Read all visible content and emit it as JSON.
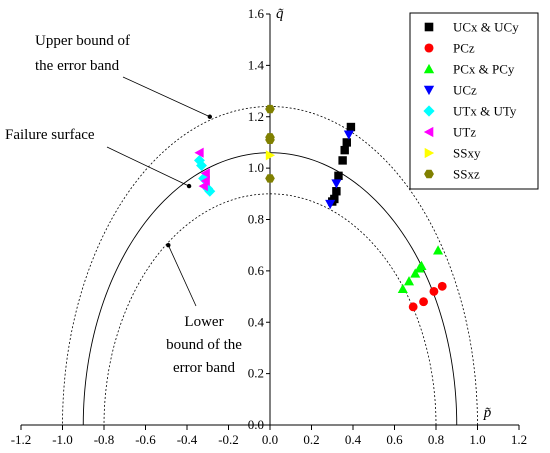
{
  "chart_data": {
    "type": "scatter",
    "xlabel": "p̃",
    "ylabel": "q̃",
    "xlim": [
      -1.2,
      1.2
    ],
    "ylim": [
      0.0,
      1.6
    ],
    "x_ticks": [
      "-1.2",
      "-1.0",
      "-0.8",
      "-0.6",
      "-0.4",
      "-0.2",
      "0.0",
      "0.2",
      "0.4",
      "0.6",
      "0.8",
      "1.0",
      "1.2"
    ],
    "y_ticks": [
      "0.0",
      "0.2",
      "0.4",
      "0.6",
      "0.8",
      "1.0",
      "1.2",
      "1.4",
      "1.6"
    ],
    "legend_position": "top-right",
    "curves": [
      {
        "label": "Failure surface",
        "style": "solid",
        "x_radius": 0.9,
        "y_radius": 1.06
      },
      {
        "label": "Upper bound of the error band",
        "style": "dotted",
        "x_radius": 1.0,
        "y_radius": 1.24
      },
      {
        "label": "Lower bound of the error band",
        "style": "dotted",
        "x_radius": 0.8,
        "y_radius": 0.9
      }
    ],
    "annotations": [
      {
        "lines": [
          "Upper bound of",
          "the error band"
        ],
        "target": [
          -0.29,
          1.2
        ]
      },
      {
        "lines": [
          "Failure surface"
        ],
        "target": [
          -0.39,
          0.93
        ]
      },
      {
        "lines": [
          "Lower",
          "bound of the",
          "error band"
        ],
        "target": [
          -0.49,
          0.7
        ]
      }
    ],
    "series": [
      {
        "name": "UCx & UCy",
        "marker": "square",
        "color": "#000000",
        "points": [
          [
            0.39,
            1.16
          ],
          [
            0.37,
            1.1
          ],
          [
            0.36,
            1.07
          ],
          [
            0.35,
            1.03
          ],
          [
            0.33,
            0.97
          ],
          [
            0.32,
            0.91
          ],
          [
            0.31,
            0.88
          ],
          [
            0.3,
            0.87
          ]
        ]
      },
      {
        "name": "PCz",
        "marker": "circle",
        "color": "#ff0000",
        "points": [
          [
            0.69,
            0.46
          ],
          [
            0.74,
            0.48
          ],
          [
            0.79,
            0.52
          ],
          [
            0.83,
            0.54
          ]
        ]
      },
      {
        "name": "PCx & PCy",
        "marker": "triangle-up",
        "color": "#00ff00",
        "points": [
          [
            0.64,
            0.53
          ],
          [
            0.67,
            0.56
          ],
          [
            0.7,
            0.59
          ],
          [
            0.72,
            0.61
          ],
          [
            0.73,
            0.62
          ],
          [
            0.81,
            0.68
          ]
        ]
      },
      {
        "name": "UCz",
        "marker": "triangle-down",
        "color": "#0000ff",
        "points": [
          [
            0.38,
            1.13
          ],
          [
            0.32,
            0.94
          ],
          [
            0.29,
            0.86
          ]
        ]
      },
      {
        "name": "UTx & UTy",
        "marker": "diamond",
        "color": "#00ffff",
        "points": [
          [
            -0.34,
            1.03
          ],
          [
            -0.33,
            1.01
          ],
          [
            -0.32,
            0.96
          ],
          [
            -0.3,
            0.92
          ],
          [
            -0.29,
            0.91
          ]
        ]
      },
      {
        "name": "UTz",
        "marker": "triangle-left",
        "color": "#ff00ff",
        "points": [
          [
            -0.34,
            1.06
          ],
          [
            -0.31,
            0.98
          ],
          [
            -0.31,
            0.95
          ],
          [
            -0.32,
            0.93
          ]
        ]
      },
      {
        "name": "SSxy",
        "marker": "triangle-right",
        "color": "#ffff00",
        "points": [
          [
            0.0,
            1.05
          ]
        ]
      },
      {
        "name": "SSxz",
        "marker": "hexagon",
        "color": "#808000",
        "points": [
          [
            0.0,
            1.23
          ],
          [
            0.0,
            1.12
          ],
          [
            0.0,
            1.11
          ],
          [
            0.0,
            0.96
          ]
        ]
      }
    ]
  }
}
